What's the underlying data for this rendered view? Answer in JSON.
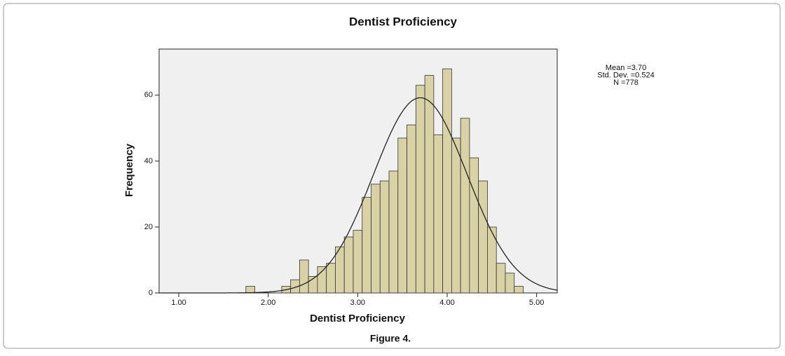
{
  "chart_data": {
    "type": "histogram",
    "title": "Dentist Proficiency",
    "x_label": "Dentist Proficiency",
    "y_label": "Frequency",
    "bins": [
      1.75,
      1.85,
      1.95,
      2.05,
      2.15,
      2.25,
      2.35,
      2.45,
      2.55,
      2.65,
      2.75,
      2.85,
      2.95,
      3.05,
      3.15,
      3.25,
      3.35,
      3.45,
      3.55,
      3.65,
      3.75,
      3.85,
      3.95,
      4.05,
      4.15,
      4.25,
      4.35,
      4.45,
      4.55,
      4.65,
      4.75,
      4.85
    ],
    "values": [
      2,
      0,
      0,
      0,
      2,
      4,
      10,
      5,
      8,
      9,
      14,
      17,
      19,
      29,
      33,
      34,
      37,
      47,
      51,
      63,
      66,
      48,
      68,
      47,
      53,
      41,
      34,
      20,
      9,
      6,
      2
    ],
    "color": "#d9d2a6",
    "xlim": [
      0.78,
      5.23
    ],
    "xticks": [
      {
        "value": 1,
        "label": "1.00"
      },
      {
        "value": 2,
        "label": "2.00"
      },
      {
        "value": 3,
        "label": "3.00"
      },
      {
        "value": 4,
        "label": "4.00"
      },
      {
        "value": 5,
        "label": "5.00"
      }
    ],
    "ylim": [
      0,
      74
    ],
    "yticks": [
      0,
      20,
      40,
      60
    ],
    "fit": {
      "mean": 3.7,
      "std": 0.524,
      "n": 778
    },
    "stats_labels": [
      "Mean =3.70",
      "Std. Dev. =0.524",
      "N =778"
    ]
  },
  "caption": "Figure 4."
}
